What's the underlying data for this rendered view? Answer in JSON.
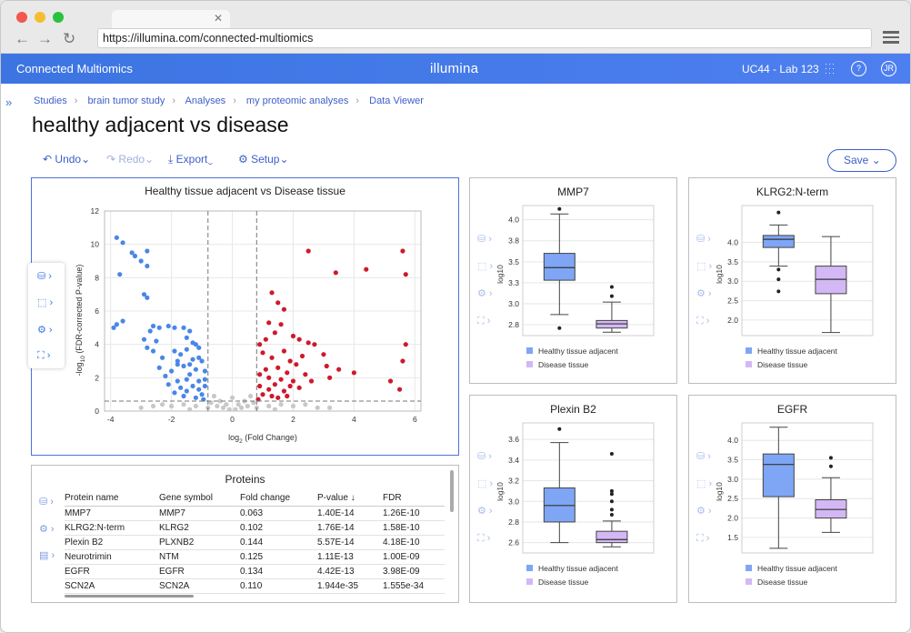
{
  "browser": {
    "url": "https://illumina.com/connected-multiomics",
    "tab_close": "✕"
  },
  "app": {
    "title": "Connected Multiomics",
    "logo": "illumina",
    "lab": "UC44 - Lab 123",
    "help": "?",
    "user_initials": "JR"
  },
  "breadcrumbs": [
    "Studies",
    "brain tumor study",
    "Analyses",
    "my proteomic analyses",
    "Data Viewer"
  ],
  "page_title": "healthy adjacent vs disease",
  "toolbar": {
    "undo": "Undo",
    "redo": "Redo",
    "export": "Export",
    "setup": "Setup",
    "save": "Save"
  },
  "icons": {
    "undo": "undo-arrow-icon",
    "redo": "redo-arrow-icon",
    "export": "download-icon",
    "setup": "gear-icon",
    "data": "database-icon",
    "select": "selection-icon",
    "settings": "gear-icon",
    "plot": "scatter-plot-icon",
    "table": "table-icon"
  },
  "colors": {
    "accent": "#3c74e2",
    "up": "#d0182c",
    "down": "#4a86e8",
    "ns": "#c8c8c8",
    "healthy": "#7ea6f4",
    "disease": "#d3b8f5"
  },
  "volcano": {
    "title": "Healthy tissue adjacent vs Disease tissue",
    "xlabel_main": "log",
    "xlabel_sub": "2",
    "xlabel_rest": " (Fold Change)",
    "ylabel_prefix": "-log",
    "ylabel_sub": "10",
    "ylabel_rest": " (FDR-corrected P-value)"
  },
  "chart_data": [
    {
      "type": "scatter",
      "title": "Healthy tissue adjacent vs Disease tissue",
      "xlabel": "log2 (Fold Change)",
      "ylabel": "-log10 (FDR-corrected P-value)",
      "xlim": [
        -4.2,
        6.2
      ],
      "ylim": [
        0,
        12
      ],
      "xticks": [
        -4,
        -2,
        0,
        2,
        4,
        6
      ],
      "yticks": [
        0,
        2,
        4,
        6,
        8,
        10,
        12
      ],
      "thresholds": {
        "fold_change_x": [
          -0.8,
          0.8
        ],
        "pvalue_y": 0.6
      },
      "grid": true,
      "series": [
        {
          "color": "#4a86e8",
          "points": [
            [
              -3.8,
              10.4
            ],
            [
              -3.6,
              10.1
            ],
            [
              -3.3,
              9.5
            ],
            [
              -3.2,
              9.3
            ],
            [
              -3.0,
              9.0
            ],
            [
              -2.8,
              9.6
            ],
            [
              -2.8,
              8.7
            ],
            [
              -3.7,
              8.2
            ],
            [
              -3.6,
              5.4
            ],
            [
              -3.9,
              5.0
            ],
            [
              -3.8,
              5.2
            ],
            [
              -2.9,
              7.0
            ],
            [
              -2.8,
              6.8
            ],
            [
              -2.7,
              4.8
            ],
            [
              -2.6,
              5.1
            ],
            [
              -2.4,
              5.0
            ],
            [
              -2.1,
              5.1
            ],
            [
              -1.9,
              5.0
            ],
            [
              -1.6,
              5.0
            ],
            [
              -1.5,
              4.4
            ],
            [
              -1.4,
              4.8
            ],
            [
              -1.3,
              4.1
            ],
            [
              -1.5,
              3.7
            ],
            [
              -1.2,
              4.0
            ],
            [
              -1.1,
              3.8
            ],
            [
              -2.9,
              4.3
            ],
            [
              -2.8,
              3.8
            ],
            [
              -2.6,
              3.6
            ],
            [
              -2.3,
              3.2
            ],
            [
              -1.9,
              3.6
            ],
            [
              -1.7,
              3.4
            ],
            [
              -1.8,
              3.0
            ],
            [
              -1.6,
              2.7
            ],
            [
              -1.4,
              2.8
            ],
            [
              -1.3,
              3.1
            ],
            [
              -1.1,
              3.2
            ],
            [
              -1.0,
              3.0
            ],
            [
              -1.2,
              2.5
            ],
            [
              -0.9,
              2.4
            ],
            [
              -2.4,
              2.6
            ],
            [
              -2.2,
              2.1
            ],
            [
              -2.0,
              2.4
            ],
            [
              -1.8,
              1.8
            ],
            [
              -1.5,
              1.9
            ],
            [
              -1.4,
              2.2
            ],
            [
              -1.1,
              1.8
            ],
            [
              -0.9,
              1.9
            ],
            [
              -1.7,
              1.4
            ],
            [
              -1.5,
              1.2
            ],
            [
              -1.3,
              1.5
            ],
            [
              -1.1,
              1.3
            ],
            [
              -1.0,
              1.0
            ],
            [
              -0.9,
              1.5
            ],
            [
              -2.1,
              1.6
            ],
            [
              -1.9,
              1.1
            ],
            [
              -1.6,
              0.9
            ],
            [
              -1.2,
              0.8
            ],
            [
              -0.95,
              0.7
            ],
            [
              -1.8,
              2.8
            ],
            [
              -2.5,
              4.2
            ]
          ]
        },
        {
          "color": "#d0182c",
          "points": [
            [
              2.5,
              9.6
            ],
            [
              3.4,
              8.3
            ],
            [
              4.4,
              8.5
            ],
            [
              5.6,
              9.6
            ],
            [
              5.7,
              8.2
            ],
            [
              1.3,
              7.1
            ],
            [
              1.5,
              6.5
            ],
            [
              1.7,
              6.1
            ],
            [
              1.2,
              5.3
            ],
            [
              1.6,
              5.2
            ],
            [
              2.0,
              4.5
            ],
            [
              2.2,
              4.3
            ],
            [
              2.5,
              4.1
            ],
            [
              2.7,
              4.0
            ],
            [
              3.0,
              3.4
            ],
            [
              3.1,
              2.7
            ],
            [
              3.5,
              2.5
            ],
            [
              4.0,
              2.3
            ],
            [
              5.2,
              1.8
            ],
            [
              5.5,
              1.3
            ],
            [
              5.7,
              4.0
            ],
            [
              5.6,
              3.0
            ],
            [
              1.4,
              4.7
            ],
            [
              1.1,
              4.3
            ],
            [
              0.9,
              4.0
            ],
            [
              1.0,
              3.5
            ],
            [
              1.3,
              3.2
            ],
            [
              1.7,
              3.6
            ],
            [
              1.9,
              3.0
            ],
            [
              2.1,
              2.8
            ],
            [
              2.3,
              3.3
            ],
            [
              1.5,
              2.6
            ],
            [
              1.1,
              2.5
            ],
            [
              0.9,
              2.2
            ],
            [
              1.2,
              2.0
            ],
            [
              1.6,
              1.9
            ],
            [
              1.8,
              2.3
            ],
            [
              2.0,
              1.8
            ],
            [
              2.4,
              2.2
            ],
            [
              0.9,
              1.5
            ],
            [
              1.2,
              1.3
            ],
            [
              1.4,
              1.6
            ],
            [
              1.7,
              1.2
            ],
            [
              1.9,
              1.5
            ],
            [
              2.2,
              1.4
            ],
            [
              1.0,
              1.0
            ],
            [
              1.3,
              0.9
            ],
            [
              1.5,
              0.8
            ],
            [
              0.85,
              0.7
            ],
            [
              1.8,
              0.9
            ],
            [
              2.6,
              1.8
            ],
            [
              3.2,
              2.0
            ]
          ]
        },
        {
          "color": "#c8c8c8",
          "points": [
            [
              -0.7,
              0.5
            ],
            [
              -0.5,
              0.3
            ],
            [
              -0.3,
              0.2
            ],
            [
              -0.1,
              0.1
            ],
            [
              0.1,
              0.1
            ],
            [
              0.3,
              0.2
            ],
            [
              0.5,
              0.3
            ],
            [
              0.7,
              0.5
            ],
            [
              -0.6,
              0.9
            ],
            [
              -0.4,
              0.6
            ],
            [
              0.4,
              0.6
            ],
            [
              0.6,
              0.9
            ],
            [
              -2.6,
              0.3
            ],
            [
              -2.3,
              0.4
            ],
            [
              -2.0,
              0.3
            ],
            [
              -1.6,
              0.4
            ],
            [
              -1.2,
              0.3
            ],
            [
              1.2,
              0.3
            ],
            [
              1.6,
              0.4
            ],
            [
              2.0,
              0.3
            ],
            [
              2.4,
              0.4
            ],
            [
              2.8,
              0.2
            ],
            [
              -3.0,
              0.2
            ],
            [
              3.2,
              0.2
            ],
            [
              -0.2,
              0.4
            ],
            [
              0.2,
              0.4
            ],
            [
              0.0,
              0.8
            ],
            [
              -0.8,
              0.2
            ],
            [
              0.8,
              0.2
            ],
            [
              -1.4,
              0.1
            ],
            [
              1.4,
              0.1
            ]
          ]
        }
      ]
    },
    {
      "type": "box",
      "title": "MMP7",
      "ylabel": "log10",
      "yticks": [
        2.75,
        3.0,
        3.25,
        3.5,
        3.75,
        4.0
      ],
      "ylim": [
        2.62,
        4.17
      ],
      "series": [
        {
          "name": "Healthy tissue adjacent",
          "min": 2.87,
          "q1": 3.28,
          "median": 3.43,
          "q3": 3.6,
          "max": 4.07,
          "outliers": [
            4.13,
            2.71
          ]
        },
        {
          "name": "Disease tissue",
          "min": 2.66,
          "q1": 2.71,
          "median": 2.76,
          "q3": 2.8,
          "max": 3.02,
          "outliers": [
            3.09,
            3.2
          ]
        }
      ]
    },
    {
      "type": "box",
      "title": "KLRG2:N-term",
      "ylabel": "log10",
      "yticks": [
        2.0,
        2.5,
        3.0,
        3.5,
        4.0
      ],
      "ylim": [
        1.6,
        4.95
      ],
      "series": [
        {
          "name": "Healthy tissue adjacent",
          "min": 3.39,
          "q1": 3.87,
          "median": 4.08,
          "q3": 4.18,
          "max": 4.45,
          "outliers": [
            4.77,
            3.3,
            3.05,
            2.74
          ]
        },
        {
          "name": "Disease tissue",
          "min": 1.68,
          "q1": 2.68,
          "median": 3.05,
          "q3": 3.39,
          "max": 4.15,
          "outliers": []
        }
      ]
    },
    {
      "type": "box",
      "title": "Plexin B2",
      "ylabel": "log10",
      "yticks": [
        2.6,
        2.8,
        3.0,
        3.2,
        3.4,
        3.6
      ],
      "ylim": [
        2.5,
        3.76
      ],
      "series": [
        {
          "name": "Healthy tissue adjacent",
          "min": 2.6,
          "q1": 2.8,
          "median": 2.96,
          "q3": 3.13,
          "max": 3.57,
          "outliers": [
            3.7
          ]
        },
        {
          "name": "Disease tissue",
          "min": 2.56,
          "q1": 2.6,
          "median": 2.63,
          "q3": 2.71,
          "max": 2.81,
          "outliers": [
            2.87,
            2.92,
            3.0,
            3.07,
            3.1,
            3.46
          ]
        }
      ]
    },
    {
      "type": "box",
      "title": "EGFR",
      "ylabel": "log10",
      "yticks": [
        1.5,
        2.0,
        2.5,
        3.0,
        3.5,
        4.0
      ],
      "ylim": [
        1.1,
        4.45
      ],
      "series": [
        {
          "name": "Healthy tissue adjacent",
          "min": 1.22,
          "q1": 2.55,
          "median": 3.38,
          "q3": 3.65,
          "max": 4.34,
          "outliers": []
        },
        {
          "name": "Disease tissue",
          "min": 1.63,
          "q1": 2.0,
          "median": 2.22,
          "q3": 2.47,
          "max": 3.04,
          "outliers": [
            3.33,
            3.55
          ]
        }
      ]
    },
    {
      "type": "table",
      "title": "Proteins",
      "columns": [
        "Protein name",
        "Gene symbol",
        "Fold change",
        "P-value",
        "FDR"
      ],
      "rows": [
        [
          "MMP7",
          "MMP7",
          "0.063",
          "1.40E-14",
          "1.26E-10"
        ],
        [
          "KLRG2:N-term",
          "KLRG2",
          "0.102",
          "1.76E-14",
          "1.58E-10"
        ],
        [
          "Plexin B2",
          "PLXNB2",
          "0.144",
          "5.57E-14",
          "4.18E-10"
        ],
        [
          "Neurotrimin",
          "NTM",
          "0.125",
          "1.11E-13",
          "1.00E-09"
        ],
        [
          "EGFR",
          "EGFR",
          "0.134",
          "4.42E-13",
          "3.98E-09"
        ],
        [
          "SCN2A",
          "SCN2A",
          "0.110",
          "1.944e-35",
          "1.555e-34"
        ]
      ]
    }
  ],
  "proteins_sort_icon": "↓",
  "legend": {
    "healthy": "Healthy tissue adjacent",
    "disease": "Disease tissue"
  }
}
